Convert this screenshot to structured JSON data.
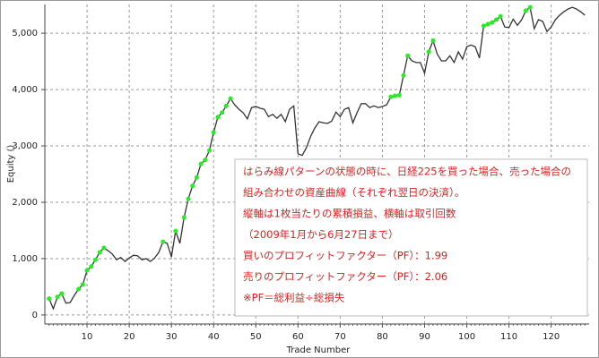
{
  "chart_data": {
    "type": "line",
    "y_label": "Equity ()",
    "x_label": "Trade Number",
    "x": [
      1,
      2,
      3,
      4,
      5,
      6,
      7,
      8,
      9,
      10,
      11,
      12,
      13,
      14,
      15,
      16,
      17,
      18,
      19,
      20,
      21,
      22,
      23,
      24,
      25,
      26,
      27,
      28,
      29,
      30,
      31,
      32,
      33,
      34,
      35,
      36,
      37,
      38,
      39,
      40,
      41,
      42,
      43,
      44,
      45,
      46,
      47,
      48,
      49,
      50,
      51,
      52,
      53,
      54,
      55,
      56,
      57,
      58,
      59,
      60,
      61,
      62,
      63,
      64,
      65,
      66,
      67,
      68,
      69,
      70,
      71,
      72,
      73,
      74,
      75,
      76,
      77,
      78,
      79,
      80,
      81,
      82,
      83,
      84,
      85,
      86,
      87,
      88,
      89,
      90,
      91,
      92,
      93,
      94,
      95,
      96,
      97,
      98,
      99,
      100,
      101,
      102,
      103,
      104,
      105,
      106,
      107,
      108,
      109,
      110,
      111,
      112,
      113,
      114,
      115,
      116,
      117,
      118,
      119,
      120,
      121,
      122,
      123,
      124,
      125,
      126,
      127,
      128
    ],
    "series": [
      {
        "color": "#333333",
        "marker_color": "#22ee22",
        "values": [
          290,
          110,
          320,
          380,
          210,
          220,
          350,
          460,
          540,
          790,
          860,
          980,
          1110,
          1190,
          1140,
          1080,
          980,
          1020,
          950,
          1010,
          1060,
          1050,
          980,
          1000,
          950,
          1010,
          1110,
          1300,
          1270,
          1030,
          1490,
          1270,
          1730,
          2060,
          2290,
          2440,
          2680,
          2750,
          2920,
          3240,
          3510,
          3590,
          3710,
          3840,
          3730,
          3650,
          3590,
          3480,
          3680,
          3700,
          3670,
          3650,
          3520,
          3560,
          3490,
          3560,
          3430,
          3650,
          3710,
          2860,
          2830,
          2970,
          3170,
          3320,
          3430,
          3410,
          3400,
          3440,
          3600,
          3520,
          3650,
          3680,
          3410,
          3590,
          3750,
          3750,
          3680,
          3710,
          3680,
          3700,
          3730,
          3870,
          3890,
          3900,
          4250,
          4600,
          4510,
          4480,
          4480,
          4290,
          4670,
          4870,
          4630,
          4510,
          4510,
          4600,
          4480,
          4670,
          4540,
          4760,
          4790,
          4760,
          4560,
          5130,
          5160,
          5190,
          5240,
          5300,
          5110,
          5100,
          5250,
          5140,
          5240,
          5400,
          5460,
          5080,
          5240,
          5210,
          5030,
          5110,
          5240,
          5320,
          5380,
          5430,
          5460,
          5430,
          5380,
          5320
        ]
      }
    ],
    "xlim": [
      0,
      129
    ],
    "ylim": [
      -160,
      5510
    ],
    "xticks": [
      10,
      20,
      30,
      40,
      50,
      60,
      70,
      80,
      90,
      100,
      110,
      120
    ],
    "yticks": [
      0,
      {
        "value": 1000,
        "label": "1,000"
      },
      {
        "value": 2000,
        "label": "2,000"
      },
      {
        "value": 3000,
        "label": "3,000"
      },
      {
        "value": 4000,
        "label": "4,000"
      },
      {
        "value": 5000,
        "label": "5,000"
      }
    ],
    "grid": true,
    "annotation": {
      "color": "#e02020",
      "lines": [
        "はらみ線パターンの状態の時に、日経225を買った場合、売った場合の",
        "組み合わせの資産曲線（それぞれ翌日の決済）。",
        "縦軸は1枚当たりの累積損益、横軸は取引回数",
        "（2009年1月から6月27日まで）",
        "買いのプロフィットファクター（PF）：1.99",
        "売りのプロフィットファクター（PF）：2.06",
        "※PF＝総利益÷総損失"
      ]
    }
  }
}
